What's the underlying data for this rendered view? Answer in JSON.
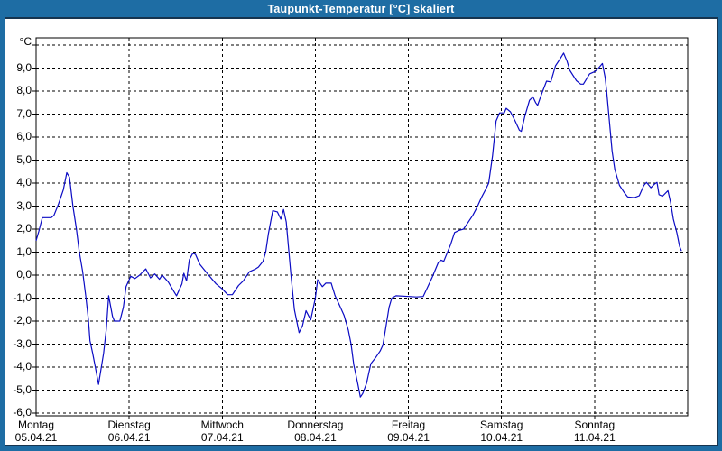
{
  "window": {
    "title": "Taupunkt-Temperatur [°C] skaliert",
    "titlebar_bg": "#1E6DA4",
    "title_text_color": "#FFFFFF",
    "border_color": "#1E6DA4",
    "inner_line_color": "#16344F",
    "background": "#FFFFFF"
  },
  "chart_data": {
    "type": "line",
    "title": "Taupunkt-Temperatur [°C] skaliert",
    "ylabel": "°C",
    "ylim": [
      -6,
      10
    ],
    "ytick_step": 1,
    "grid": "dashed-both-axes",
    "line_color": "#0B0BC4",
    "grid_color": "#000000",
    "yticks": [
      {
        "value": 9,
        "label": "9,0"
      },
      {
        "value": 8,
        "label": "8,0"
      },
      {
        "value": 7,
        "label": "7,0"
      },
      {
        "value": 6,
        "label": "6,0"
      },
      {
        "value": 5,
        "label": "5,0"
      },
      {
        "value": 4,
        "label": "4,0"
      },
      {
        "value": 3,
        "label": "3,0"
      },
      {
        "value": 2,
        "label": "2,0"
      },
      {
        "value": 1,
        "label": "1,0"
      },
      {
        "value": 0,
        "label": "0,0"
      },
      {
        "value": -1,
        "label": "-1,0"
      },
      {
        "value": -2,
        "label": "-2,0"
      },
      {
        "value": -3,
        "label": "-3,0"
      },
      {
        "value": -4,
        "label": "-4,0"
      },
      {
        "value": -5,
        "label": "-5,0"
      },
      {
        "value": -6,
        "label": "-6,0"
      }
    ],
    "x_unit": "hours_since_monday_00:00",
    "xlim": [
      0,
      168
    ],
    "x_days": [
      {
        "name": "Montag",
        "date": "05.04.21",
        "hour": 0
      },
      {
        "name": "Dienstag",
        "date": "06.04.21",
        "hour": 24
      },
      {
        "name": "Mittwoch",
        "date": "07.04.21",
        "hour": 48
      },
      {
        "name": "Donnerstag",
        "date": "08.04.21",
        "hour": 72
      },
      {
        "name": "Freitag",
        "date": "09.04.21",
        "hour": 96
      },
      {
        "name": "Samstag",
        "date": "10.04.21",
        "hour": 120
      },
      {
        "name": "Sonntag",
        "date": "11.04.21",
        "hour": 144
      }
    ],
    "series": [
      {
        "name": "Taupunkt-Temperatur",
        "points": [
          [
            0,
            1.5
          ],
          [
            0.7,
            1.9
          ],
          [
            1.6,
            2.5
          ],
          [
            3.9,
            2.5
          ],
          [
            4.6,
            2.6
          ],
          [
            5.8,
            3.1
          ],
          [
            7,
            3.7
          ],
          [
            7.9,
            4.45
          ],
          [
            8.6,
            4.25
          ],
          [
            9.5,
            3.0
          ],
          [
            10.4,
            2.0
          ],
          [
            11.1,
            1.05
          ],
          [
            12,
            0.15
          ],
          [
            12.8,
            -0.9
          ],
          [
            13.5,
            -1.95
          ],
          [
            13.9,
            -2.85
          ],
          [
            14.6,
            -3.4
          ],
          [
            15.5,
            -4.2
          ],
          [
            16.1,
            -4.75
          ],
          [
            17.4,
            -3.4
          ],
          [
            18.1,
            -2.35
          ],
          [
            18.7,
            -0.9
          ],
          [
            19.7,
            -1.8
          ],
          [
            20.2,
            -2.0
          ],
          [
            21.6,
            -2.0
          ],
          [
            22.5,
            -1.4
          ],
          [
            23.2,
            -0.5
          ],
          [
            24,
            -0.2
          ],
          [
            24.4,
            -0.05
          ],
          [
            25.5,
            -0.15
          ],
          [
            26.7,
            0
          ],
          [
            28.3,
            0.27
          ],
          [
            29.5,
            -0.12
          ],
          [
            30.6,
            0.05
          ],
          [
            31.8,
            -0.18
          ],
          [
            32.5,
            0
          ],
          [
            34.1,
            -0.3
          ],
          [
            35.3,
            -0.65
          ],
          [
            36.2,
            -0.9
          ],
          [
            37.6,
            -0.38
          ],
          [
            38.1,
            0.08
          ],
          [
            38.8,
            -0.25
          ],
          [
            39.5,
            0.67
          ],
          [
            40.4,
            0.95
          ],
          [
            41.1,
            0.9
          ],
          [
            42.2,
            0.47
          ],
          [
            44.1,
            0.08
          ],
          [
            46.4,
            -0.38
          ],
          [
            48,
            -0.6
          ],
          [
            49.4,
            -0.85
          ],
          [
            50.6,
            -0.85
          ],
          [
            52.2,
            -0.45
          ],
          [
            53.4,
            -0.25
          ],
          [
            55,
            0.15
          ],
          [
            56.4,
            0.25
          ],
          [
            57.3,
            0.35
          ],
          [
            58.5,
            0.6
          ],
          [
            59.2,
            1.0
          ],
          [
            59.9,
            1.8
          ],
          [
            61,
            2.8
          ],
          [
            62.2,
            2.75
          ],
          [
            63.1,
            2.43
          ],
          [
            63.8,
            2.85
          ],
          [
            64.5,
            2.3
          ],
          [
            65.7,
            0
          ],
          [
            66.6,
            -1.5
          ],
          [
            67.8,
            -2.5
          ],
          [
            68.7,
            -2.2
          ],
          [
            69.6,
            -1.55
          ],
          [
            70.8,
            -1.95
          ],
          [
            72,
            -1.0
          ],
          [
            72.6,
            -0.2
          ],
          [
            73.8,
            -0.5
          ],
          [
            74.7,
            -0.35
          ],
          [
            76.1,
            -0.35
          ],
          [
            77.1,
            -0.9
          ],
          [
            78.2,
            -1.3
          ],
          [
            79.4,
            -1.75
          ],
          [
            80.5,
            -2.4
          ],
          [
            81.2,
            -3.0
          ],
          [
            81.9,
            -3.9
          ],
          [
            82.9,
            -4.7
          ],
          [
            83.6,
            -5.3
          ],
          [
            84.2,
            -5.15
          ],
          [
            85.2,
            -4.7
          ],
          [
            86.3,
            -3.85
          ],
          [
            87.5,
            -3.6
          ],
          [
            88.7,
            -3.3
          ],
          [
            89.4,
            -3.05
          ],
          [
            90.1,
            -2.35
          ],
          [
            91,
            -1.4
          ],
          [
            91.7,
            -1.0
          ],
          [
            92.8,
            -0.9
          ],
          [
            96.1,
            -0.93
          ],
          [
            98,
            -0.95
          ],
          [
            99.8,
            -0.93
          ],
          [
            101,
            -0.5
          ],
          [
            102.1,
            -0.1
          ],
          [
            103.7,
            0.55
          ],
          [
            104.4,
            0.65
          ],
          [
            105.1,
            0.6
          ],
          [
            106.8,
            1.3
          ],
          [
            107.9,
            1.85
          ],
          [
            109.1,
            1.95
          ],
          [
            110.2,
            2.0
          ],
          [
            111.4,
            2.3
          ],
          [
            112.6,
            2.6
          ],
          [
            113.7,
            2.95
          ],
          [
            114.9,
            3.4
          ],
          [
            116,
            3.75
          ],
          [
            116.7,
            4.0
          ],
          [
            117.7,
            5.2
          ],
          [
            118.6,
            6.7
          ],
          [
            119.5,
            7.05
          ],
          [
            120.7,
            7.05
          ],
          [
            121.2,
            7.25
          ],
          [
            122.3,
            7.1
          ],
          [
            123.5,
            6.7
          ],
          [
            124.6,
            6.3
          ],
          [
            125.1,
            6.25
          ],
          [
            126,
            6.9
          ],
          [
            127.2,
            7.6
          ],
          [
            128.1,
            7.75
          ],
          [
            128.8,
            7.5
          ],
          [
            129.3,
            7.38
          ],
          [
            130.4,
            7.9
          ],
          [
            131.6,
            8.43
          ],
          [
            132.7,
            8.4
          ],
          [
            133.9,
            9.1
          ],
          [
            135.1,
            9.4
          ],
          [
            136,
            9.65
          ],
          [
            136.9,
            9.3
          ],
          [
            137.6,
            8.9
          ],
          [
            139.3,
            8.45
          ],
          [
            140.4,
            8.3
          ],
          [
            141.1,
            8.3
          ],
          [
            142.7,
            8.75
          ],
          [
            144.1,
            8.85
          ],
          [
            145,
            9.0
          ],
          [
            146,
            9.2
          ],
          [
            146.7,
            8.6
          ],
          [
            147.1,
            8.0
          ],
          [
            147.8,
            6.7
          ],
          [
            148.5,
            5.4
          ],
          [
            149.2,
            4.6
          ],
          [
            150.4,
            3.9
          ],
          [
            151.6,
            3.6
          ],
          [
            152.5,
            3.4
          ],
          [
            154.3,
            3.37
          ],
          [
            155.5,
            3.45
          ],
          [
            156.7,
            3.9
          ],
          [
            157.4,
            4.03
          ],
          [
            158.5,
            3.8
          ],
          [
            159.4,
            3.95
          ],
          [
            160.1,
            4.03
          ],
          [
            160.6,
            3.5
          ],
          [
            161.5,
            3.43
          ],
          [
            162.9,
            3.67
          ],
          [
            163.6,
            3.15
          ],
          [
            164.3,
            2.43
          ],
          [
            165.2,
            1.84
          ],
          [
            165.9,
            1.25
          ],
          [
            166.4,
            1.05
          ]
        ]
      }
    ]
  }
}
